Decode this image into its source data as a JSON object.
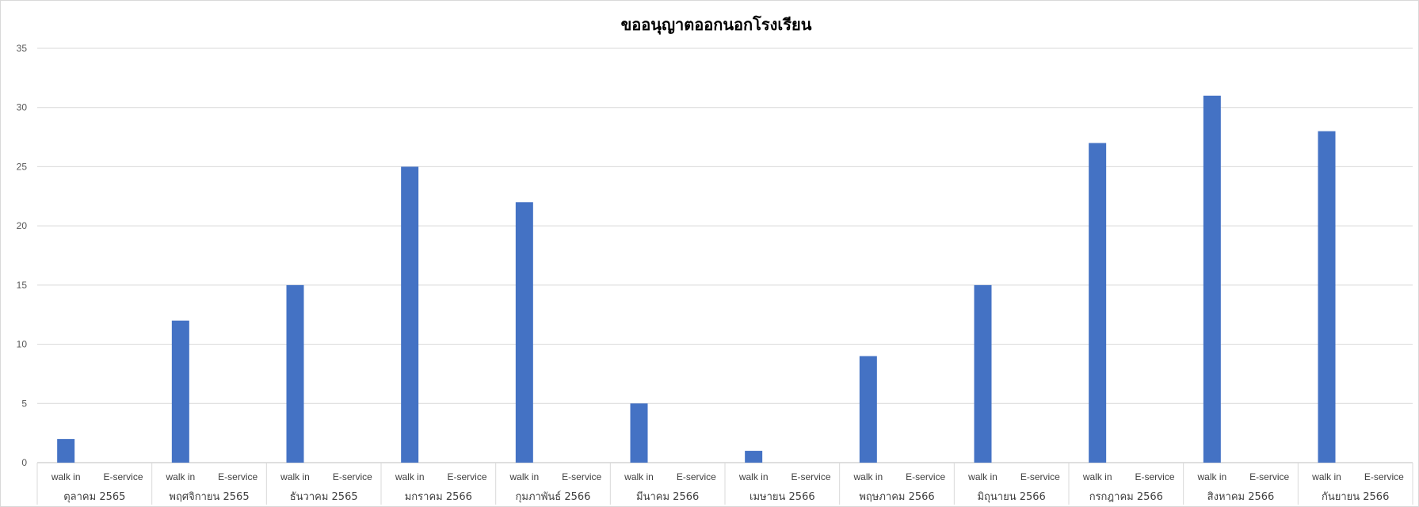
{
  "chart_data": {
    "type": "bar",
    "title": "ขออนุญาตออกนอกโรงเรียน",
    "xlabel": "",
    "ylabel": "",
    "ylim": [
      0,
      35
    ],
    "yticks": [
      0,
      5,
      10,
      15,
      20,
      25,
      30,
      35
    ],
    "grid": true,
    "legend": "none",
    "bar_color": "#4472C4",
    "months": [
      "ตุลาคม 2565",
      "พฤศจิกายน 2565",
      "ธันวาคม 2565",
      "มกราคม 2566",
      "กุมภาพันธ์ 2566",
      "มีนาคม 2566",
      "เมษายน 2566",
      "พฤษภาคม 2566",
      "มิถุนายน 2566",
      "กรกฎาคม 2566",
      "สิงหาคม 2566",
      "กันยายน 2566"
    ],
    "subcategories": [
      "walk in",
      "E-service"
    ],
    "values": [
      [
        2,
        0
      ],
      [
        12,
        0
      ],
      [
        15,
        0
      ],
      [
        25,
        0
      ],
      [
        22,
        0
      ],
      [
        5,
        0
      ],
      [
        1,
        0
      ],
      [
        9,
        0
      ],
      [
        15,
        0
      ],
      [
        27,
        0
      ],
      [
        31,
        0
      ],
      [
        28,
        0
      ]
    ]
  }
}
